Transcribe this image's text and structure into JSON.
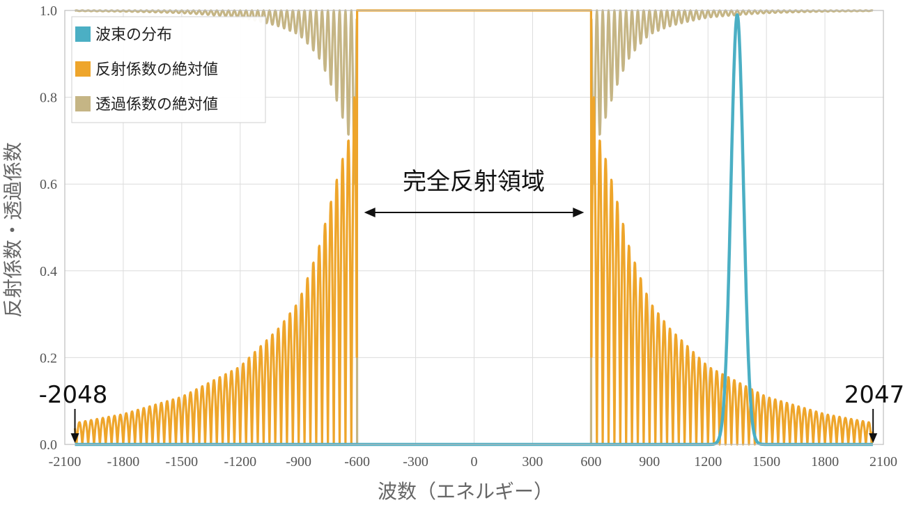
{
  "chart_data": {
    "type": "line",
    "title": "",
    "xlabel": "波数（エネルギー）",
    "ylabel": "反射係数・透過係数",
    "xlim": [
      -2100,
      2100
    ],
    "ylim": [
      0,
      1
    ],
    "x_ticks": [
      -2100,
      -1800,
      -1500,
      -1200,
      -900,
      -600,
      -300,
      0,
      300,
      600,
      900,
      1200,
      1500,
      1800,
      2100
    ],
    "y_ticks": [
      "0.0",
      "0.2",
      "0.4",
      "0.6",
      "0.8",
      "1.0"
    ],
    "grid": true,
    "legend_position": "top-left",
    "total_reflection_cutoff": [
      -600,
      600
    ],
    "oscillation_period": 30,
    "series": [
      {
        "name": "波束の分布",
        "color": "#4bafc4",
        "kind": "gaussian",
        "center": 1350,
        "peak": 0.99,
        "sigma": 32
      },
      {
        "name": "反射係数の絶対値",
        "color": "#eea52b",
        "kind": "oscillating-envelope",
        "envelope": [
          [
            -2040,
            0.05
          ],
          [
            -1800,
            0.07
          ],
          [
            -1500,
            0.11
          ],
          [
            -1200,
            0.18
          ],
          [
            -1000,
            0.27
          ],
          [
            -900,
            0.33
          ],
          [
            -800,
            0.45
          ],
          [
            -700,
            0.62
          ],
          [
            -650,
            0.7
          ],
          [
            -620,
            0.72
          ],
          [
            -600,
            1.0
          ],
          [
            600,
            1.0
          ],
          [
            620,
            0.72
          ],
          [
            650,
            0.7
          ],
          [
            700,
            0.62
          ],
          [
            800,
            0.45
          ],
          [
            900,
            0.33
          ],
          [
            1000,
            0.27
          ],
          [
            1200,
            0.18
          ],
          [
            1500,
            0.11
          ],
          [
            1800,
            0.07
          ],
          [
            2040,
            0.05
          ]
        ]
      },
      {
        "name": "透過係数の絶対値",
        "color": "#c5b585",
        "kind": "oscillating-complement",
        "values_inside_cutoff": 0
      }
    ],
    "annotations": [
      {
        "text": "-2048",
        "points_to_x": -2048
      },
      {
        "text": "2047",
        "points_to_x": 2047
      },
      {
        "text": "完全反射領域",
        "span": [
          -600,
          600
        ]
      }
    ]
  }
}
